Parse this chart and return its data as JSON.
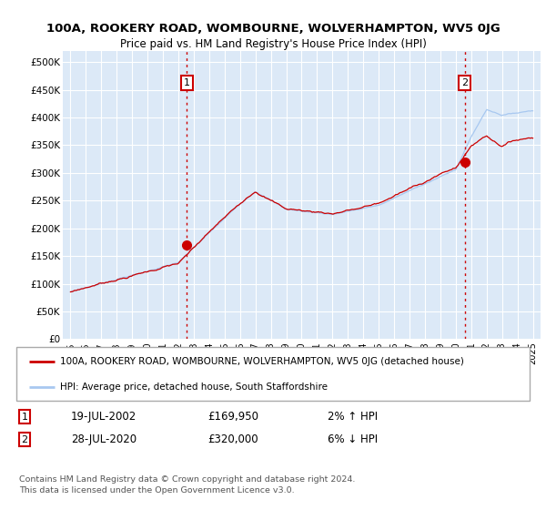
{
  "title1": "100A, ROOKERY ROAD, WOMBOURNE, WOLVERHAMPTON, WV5 0JG",
  "title2": "Price paid vs. HM Land Registry's House Price Index (HPI)",
  "bg_color": "#ffffff",
  "plot_bg_color": "#dce9f7",
  "grid_color": "#ffffff",
  "hpi_color": "#a8c8f0",
  "price_color": "#cc0000",
  "marker1_date": 2002.55,
  "marker1_price": 169950,
  "marker1_label": "1",
  "marker2_date": 2020.57,
  "marker2_price": 320000,
  "marker2_label": "2",
  "ylim": [
    0,
    520000
  ],
  "xlim_start": 1994.5,
  "xlim_end": 2025.5,
  "legend_line1": "100A, ROOKERY ROAD, WOMBOURNE, WOLVERHAMPTON, WV5 0JG (detached house)",
  "legend_line2": "HPI: Average price, detached house, South Staffordshire",
  "ann1_date": "19-JUL-2002",
  "ann1_price": "£169,950",
  "ann1_hpi": "2% ↑ HPI",
  "ann2_date": "28-JUL-2020",
  "ann2_price": "£320,000",
  "ann2_hpi": "6% ↓ HPI",
  "footer": "Contains HM Land Registry data © Crown copyright and database right 2024.\nThis data is licensed under the Open Government Licence v3.0.",
  "yticks": [
    0,
    50000,
    100000,
    150000,
    200000,
    250000,
    300000,
    350000,
    400000,
    450000,
    500000
  ],
  "ytick_labels": [
    "£0",
    "£50K",
    "£100K",
    "£150K",
    "£200K",
    "£250K",
    "£300K",
    "£350K",
    "£400K",
    "£450K",
    "£500K"
  ],
  "xtick_years": [
    1995,
    1996,
    1997,
    1998,
    1999,
    2000,
    2001,
    2002,
    2003,
    2004,
    2005,
    2006,
    2007,
    2008,
    2009,
    2010,
    2011,
    2012,
    2013,
    2014,
    2015,
    2016,
    2017,
    2018,
    2019,
    2020,
    2021,
    2022,
    2023,
    2024,
    2025
  ]
}
